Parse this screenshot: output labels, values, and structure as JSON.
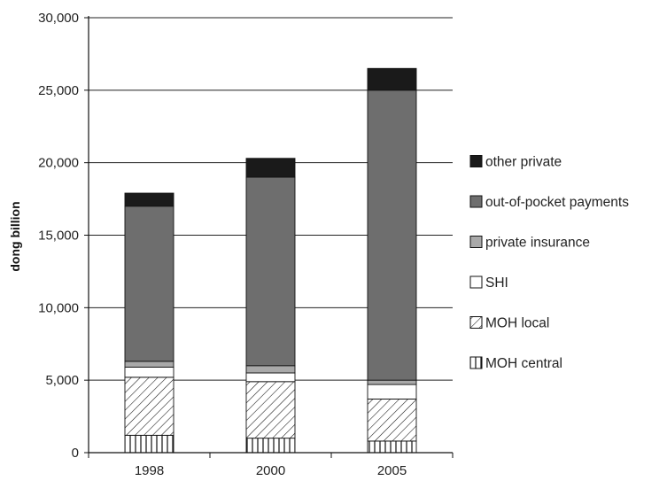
{
  "chart_data": {
    "type": "bar",
    "stacked": true,
    "categories": [
      "1998",
      "2000",
      "2005"
    ],
    "ylabel": "dong billion",
    "ylim": [
      0,
      30000
    ],
    "yticks": [
      0,
      5000,
      10000,
      15000,
      20000,
      25000,
      30000
    ],
    "ytick_labels": [
      "0",
      "5,000",
      "10,000",
      "15,000",
      "20,000",
      "25,000",
      "30,000"
    ],
    "grid": true,
    "legend_position": "right",
    "series": [
      {
        "name": "MOH central",
        "values": [
          1200,
          1000,
          800
        ],
        "fill": "vertical-hatch"
      },
      {
        "name": "MOH local",
        "values": [
          4000,
          3900,
          2900
        ],
        "fill": "diagonal-hatch"
      },
      {
        "name": "SHI",
        "values": [
          700,
          600,
          1000
        ],
        "fill": "#ffffff"
      },
      {
        "name": "private insurance",
        "values": [
          400,
          500,
          300
        ],
        "fill": "#a9a9a9"
      },
      {
        "name": "out-of-pocket payments",
        "values": [
          10700,
          13000,
          20000
        ],
        "fill": "#6e6e6e"
      },
      {
        "name": "other private",
        "values": [
          900,
          1300,
          1500
        ],
        "fill": "#1a1a1a"
      }
    ],
    "legend_order": [
      "other private",
      "out-of-pocket payments",
      "private insurance",
      "SHI",
      "MOH local",
      "MOH central"
    ]
  }
}
